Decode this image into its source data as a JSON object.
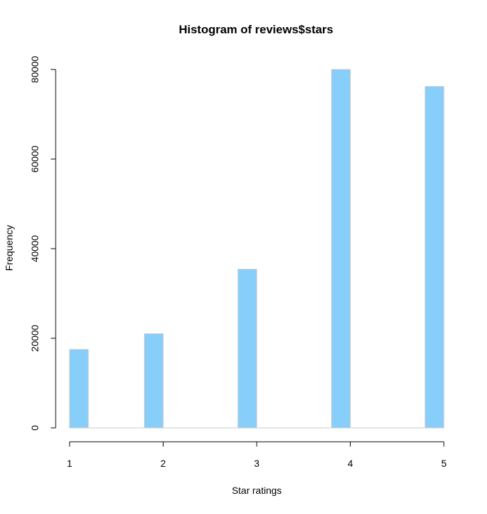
{
  "chart_data": {
    "type": "bar",
    "title": "Histogram of reviews$stars",
    "xlabel": "Star ratings",
    "ylabel": "Frequency",
    "x_ticks": [
      1,
      2,
      3,
      4,
      5
    ],
    "y_ticks": [
      0,
      20000,
      40000,
      60000,
      80000
    ],
    "xlim": [
      1,
      5
    ],
    "ylim": [
      0,
      80000
    ],
    "bin_width": 0.2,
    "bins": [
      {
        "start": 1.0,
        "end": 1.2,
        "value": 17500
      },
      {
        "start": 1.2,
        "end": 1.4,
        "value": 0
      },
      {
        "start": 1.4,
        "end": 1.6,
        "value": 0
      },
      {
        "start": 1.6,
        "end": 1.8,
        "value": 0
      },
      {
        "start": 1.8,
        "end": 2.0,
        "value": 21000
      },
      {
        "start": 2.0,
        "end": 2.2,
        "value": 0
      },
      {
        "start": 2.2,
        "end": 2.4,
        "value": 0
      },
      {
        "start": 2.4,
        "end": 2.6,
        "value": 0
      },
      {
        "start": 2.6,
        "end": 2.8,
        "value": 0
      },
      {
        "start": 2.8,
        "end": 3.0,
        "value": 35400
      },
      {
        "start": 3.0,
        "end": 3.2,
        "value": 0
      },
      {
        "start": 3.2,
        "end": 3.4,
        "value": 0
      },
      {
        "start": 3.4,
        "end": 3.6,
        "value": 0
      },
      {
        "start": 3.6,
        "end": 3.8,
        "value": 0
      },
      {
        "start": 3.8,
        "end": 4.0,
        "value": 80000
      },
      {
        "start": 4.0,
        "end": 4.2,
        "value": 0
      },
      {
        "start": 4.2,
        "end": 4.4,
        "value": 0
      },
      {
        "start": 4.4,
        "end": 4.6,
        "value": 0
      },
      {
        "start": 4.6,
        "end": 4.8,
        "value": 0
      },
      {
        "start": 4.8,
        "end": 5.0,
        "value": 76200
      }
    ],
    "bar_color": "#87CEFA",
    "bar_border_color": "#C8C8C8",
    "grid": false,
    "legend": false
  }
}
